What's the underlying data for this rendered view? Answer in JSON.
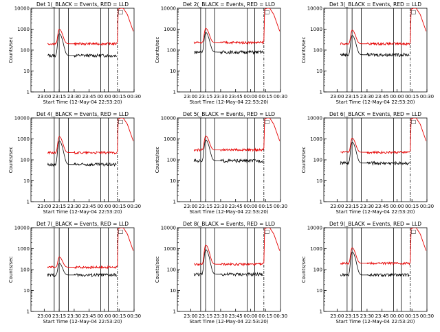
{
  "chart_data": {
    "type": "line",
    "yscale": "log",
    "ylim": [
      1,
      10000
    ],
    "ylabel": "Counts/sec",
    "xlabel": "Start Time (12-May-04 22:53:20)",
    "x_ticks": [
      "23:00",
      "23:15",
      "23:30",
      "23:45",
      "00:00",
      "00:15",
      "00:30"
    ],
    "y_ticks": [
      "1",
      "10",
      "100",
      "1000",
      "10000"
    ],
    "legend_mark": "□",
    "series_colors": {
      "events": "#000000",
      "lld": "#e60000"
    },
    "panels": [
      {
        "title": "Det 1(_BLACK = Events, RED = LLD",
        "events_base": 55,
        "events_peak": 600,
        "lld_base": 200,
        "lld_peak": 1000
      },
      {
        "title": "Det 2(_BLACK = Events, RED = LLD",
        "events_base": 80,
        "events_peak": 700,
        "lld_base": 230,
        "lld_peak": 1100
      },
      {
        "title": "Det 3(_BLACK = Events, RED = LLD",
        "events_base": 60,
        "events_peak": 500,
        "lld_base": 200,
        "lld_peak": 900
      },
      {
        "title": "Det 4(_BLACK = Events, RED = LLD",
        "events_base": 60,
        "events_peak": 800,
        "lld_base": 220,
        "lld_peak": 1300
      },
      {
        "title": "Det 5(_BLACK = Events, RED = LLD",
        "events_base": 90,
        "events_peak": 900,
        "lld_base": 300,
        "lld_peak": 1400
      },
      {
        "title": "Det 6(_BLACK = Events, RED = LLD",
        "events_base": 70,
        "events_peak": 700,
        "lld_base": 230,
        "lld_peak": 1100
      },
      {
        "title": "Det 7(_BLACK = Events, RED = LLD",
        "events_base": 55,
        "events_peak": 200,
        "lld_base": 130,
        "lld_peak": 400
      },
      {
        "title": "Det 8(_BLACK = Events, RED = LLD",
        "events_base": 60,
        "events_peak": 900,
        "lld_base": 180,
        "lld_peak": 1500
      },
      {
        "title": "Det 9(_BLACK = Events, RED = LLD",
        "events_base": 55,
        "events_peak": 700,
        "lld_base": 200,
        "lld_peak": 1100
      }
    ]
  }
}
